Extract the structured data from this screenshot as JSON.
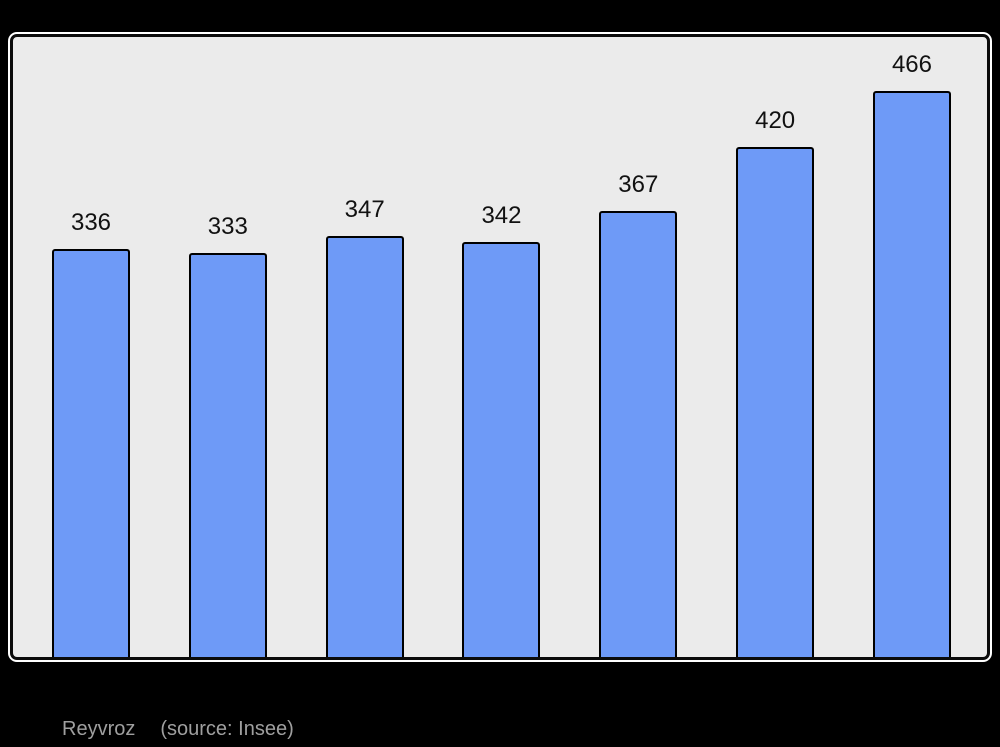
{
  "chart_data": {
    "type": "bar",
    "values": [
      336,
      333,
      347,
      342,
      367,
      420,
      466
    ],
    "title": "",
    "xlabel": "",
    "ylabel": "",
    "ylim": [
      0,
      511
    ],
    "grid": false,
    "axes_shown": false,
    "legend": null,
    "value_labels_shown": true,
    "colors": {
      "bar_fill": "#6e9af7",
      "bar_border": "#000000",
      "plot_background": "#ebebeb",
      "plot_border": "#0b0b0b",
      "plot_outer_rim": "#ffffff",
      "page_background": "#000000",
      "value_label": "#111111"
    }
  },
  "caption": {
    "place": "Reyvroz",
    "source": "(source: Insee)",
    "color": "#9f9f9f"
  }
}
